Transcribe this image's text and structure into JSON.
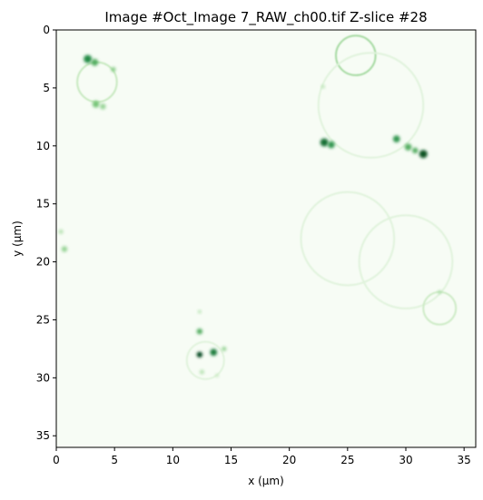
{
  "title": "Image #Oct_Image 7_RAW_ch00.tif Z-slice #28",
  "x_axis": {
    "label": "x (μm)",
    "range": [
      0,
      36
    ],
    "ticks": [
      "0",
      "5",
      "10",
      "15",
      "20",
      "25",
      "30",
      "35"
    ]
  },
  "y_axis": {
    "label": "y (μm)",
    "range": [
      0,
      36
    ],
    "inverted": true,
    "ticks": [
      "0",
      "5",
      "10",
      "15",
      "20",
      "25",
      "30",
      "35"
    ]
  },
  "image": {
    "colormap": "Greens",
    "background_color": "#f7fcf5",
    "signal_color": "#00441b",
    "features": [
      {
        "type": "ring",
        "cx": 25.7,
        "cy": 2.2,
        "r": 1.7,
        "strength": 0.35
      },
      {
        "type": "ring",
        "cx": 3.5,
        "cy": 4.5,
        "r": 1.7,
        "strength": 0.25
      },
      {
        "type": "ring",
        "cx": 27.0,
        "cy": 6.5,
        "r": 4.5,
        "strength": 0.12
      },
      {
        "type": "ring",
        "cx": 25.0,
        "cy": 18.0,
        "r": 4.0,
        "strength": 0.12
      },
      {
        "type": "ring",
        "cx": 30.0,
        "cy": 20.0,
        "r": 4.0,
        "strength": 0.12
      },
      {
        "type": "ring",
        "cx": 32.9,
        "cy": 24.0,
        "r": 1.4,
        "strength": 0.22
      },
      {
        "type": "ring",
        "cx": 12.8,
        "cy": 28.5,
        "r": 1.6,
        "strength": 0.12
      },
      {
        "type": "spot",
        "x": 2.7,
        "y": 2.5,
        "r": 0.35,
        "strength": 0.75
      },
      {
        "type": "spot",
        "x": 3.3,
        "y": 2.8,
        "r": 0.3,
        "strength": 0.6
      },
      {
        "type": "spot",
        "x": 4.9,
        "y": 3.4,
        "r": 0.2,
        "strength": 0.45
      },
      {
        "type": "spot",
        "x": 3.4,
        "y": 6.4,
        "r": 0.3,
        "strength": 0.5
      },
      {
        "type": "spot",
        "x": 4.0,
        "y": 6.6,
        "r": 0.25,
        "strength": 0.4
      },
      {
        "type": "spot",
        "x": 23.0,
        "y": 9.7,
        "r": 0.35,
        "strength": 0.85
      },
      {
        "type": "spot",
        "x": 23.6,
        "y": 9.9,
        "r": 0.3,
        "strength": 0.7
      },
      {
        "type": "spot",
        "x": 29.2,
        "y": 9.4,
        "r": 0.3,
        "strength": 0.7
      },
      {
        "type": "spot",
        "x": 30.2,
        "y": 10.1,
        "r": 0.3,
        "strength": 0.6
      },
      {
        "type": "spot",
        "x": 31.5,
        "y": 10.7,
        "r": 0.35,
        "strength": 0.95
      },
      {
        "type": "spot",
        "x": 30.8,
        "y": 10.4,
        "r": 0.25,
        "strength": 0.6
      },
      {
        "type": "spot",
        "x": 22.9,
        "y": 4.9,
        "r": 0.15,
        "strength": 0.3
      },
      {
        "type": "spot",
        "x": 0.7,
        "y": 18.9,
        "r": 0.25,
        "strength": 0.4
      },
      {
        "type": "spot",
        "x": 0.4,
        "y": 17.4,
        "r": 0.2,
        "strength": 0.3
      },
      {
        "type": "spot",
        "x": 12.3,
        "y": 28.0,
        "r": 0.25,
        "strength": 1.0
      },
      {
        "type": "spot",
        "x": 12.3,
        "y": 26.0,
        "r": 0.25,
        "strength": 0.6
      },
      {
        "type": "spot",
        "x": 13.5,
        "y": 27.8,
        "r": 0.3,
        "strength": 0.8
      },
      {
        "type": "spot",
        "x": 14.4,
        "y": 27.5,
        "r": 0.2,
        "strength": 0.4
      },
      {
        "type": "spot",
        "x": 12.5,
        "y": 29.5,
        "r": 0.2,
        "strength": 0.3
      },
      {
        "type": "spot",
        "x": 13.8,
        "y": 29.8,
        "r": 0.15,
        "strength": 0.25
      },
      {
        "type": "spot",
        "x": 12.3,
        "y": 24.3,
        "r": 0.15,
        "strength": 0.3
      },
      {
        "type": "spot",
        "x": 32.9,
        "y": 22.6,
        "r": 0.15,
        "strength": 0.35
      }
    ]
  }
}
